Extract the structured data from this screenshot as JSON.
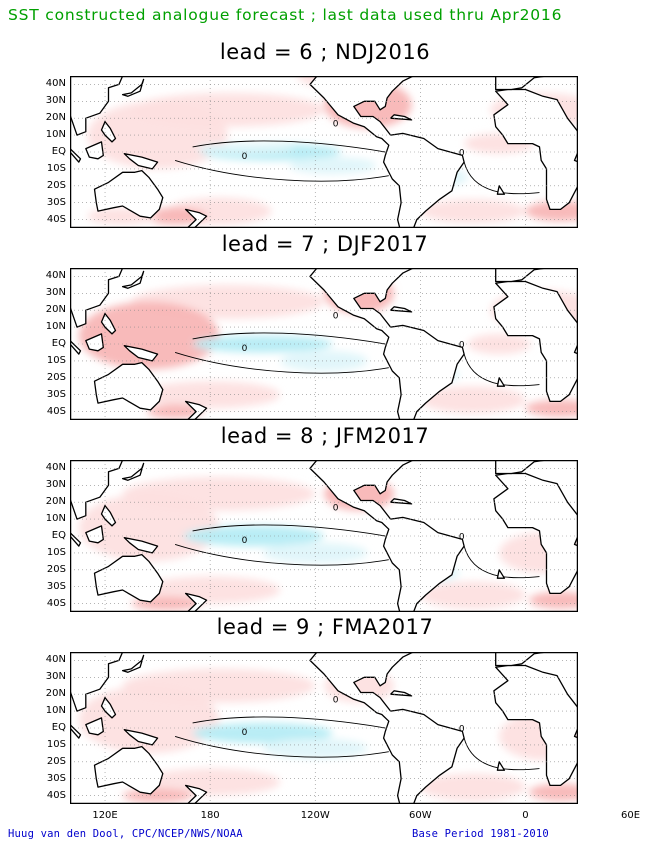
{
  "header": {
    "title": "SST constructed analogue forecast ; last data used thru Apr2016"
  },
  "panels": [
    {
      "title": "lead = 6 ; NDJ2016"
    },
    {
      "title": "lead = 7 ; DJF2017"
    },
    {
      "title": "lead = 8 ; JFM2017"
    },
    {
      "title": "lead = 9 ; FMA2017"
    }
  ],
  "lat_labels": [
    "40N",
    "30N",
    "20N",
    "10N",
    "EQ",
    "10S",
    "20S",
    "30S",
    "40S"
  ],
  "lon_labels": [
    "120E",
    "180",
    "120W",
    "60W",
    "0",
    "60E"
  ],
  "contour_label": "0",
  "footer": {
    "credit": "Huug van den Dool, CPC/NCEP/NWS/NOAA",
    "base_period": "Base Period 1981-2010"
  },
  "colors": {
    "header": "#00a000",
    "footer": "#0000cc",
    "warm_light": "#fde0e0",
    "warm_mid": "#f8b6b6",
    "warm_strong": "#ee9090",
    "cool_light": "#dff6fa",
    "cool_mid": "#b5ecf4"
  }
}
